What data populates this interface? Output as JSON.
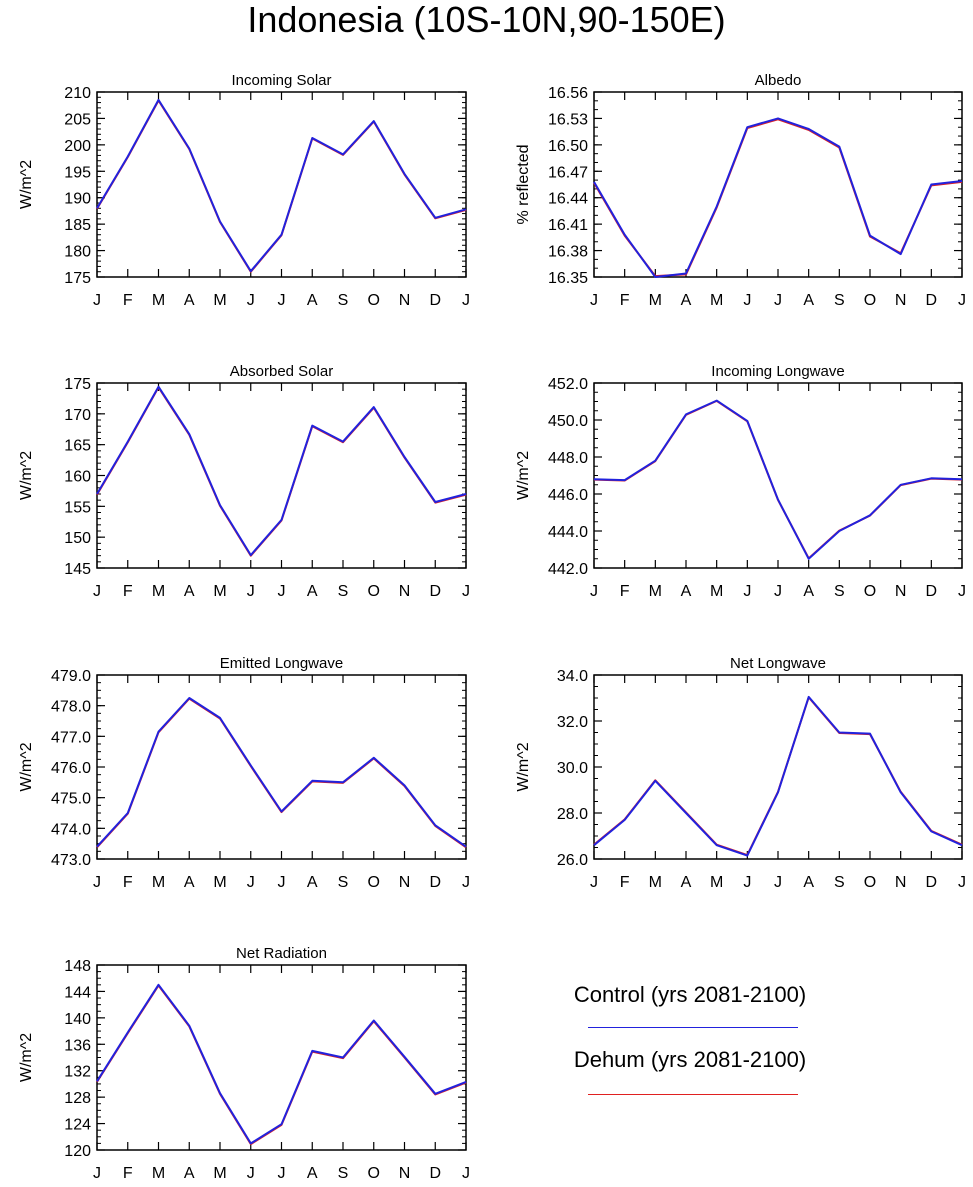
{
  "title": "Indonesia (10S-10N,90-150E)",
  "months": [
    "J",
    "F",
    "M",
    "A",
    "M",
    "J",
    "J",
    "A",
    "S",
    "O",
    "N",
    "D",
    "J"
  ],
  "colors": {
    "control": "#2222dd",
    "dehum": "#e02020",
    "axis": "#000000"
  },
  "chart_data": [
    {
      "type": "line",
      "title": "Incoming Solar",
      "ylabel": "W/m^2",
      "ylim": [
        175,
        210
      ],
      "major": 5,
      "minor": 1,
      "decimals": 0,
      "series": [
        {
          "name": "Control (yrs 2081-2100)",
          "values": [
            188.0,
            197.8,
            208.5,
            199.3,
            185.5,
            176.1,
            183.0,
            201.3,
            198.2,
            204.5,
            194.5,
            186.2,
            187.8
          ]
        },
        {
          "name": "Dehum (yrs 2081-2100)",
          "values": [
            187.9,
            197.7,
            208.4,
            199.2,
            185.4,
            176.0,
            182.9,
            201.2,
            198.1,
            204.4,
            194.4,
            186.1,
            187.7
          ]
        }
      ]
    },
    {
      "type": "line",
      "title": "Albedo",
      "ylabel": "% reflected",
      "ylim": [
        16.35,
        16.56
      ],
      "major": 0.03,
      "minor": 0.01,
      "decimals": 2,
      "series": [
        {
          "name": "Control (yrs 2081-2100)",
          "values": [
            16.458,
            16.398,
            16.35,
            16.354,
            16.43,
            16.52,
            16.53,
            16.518,
            16.498,
            16.397,
            16.376,
            16.455,
            16.459
          ]
        },
        {
          "name": "Dehum (yrs 2081-2100)",
          "values": [
            16.457,
            16.397,
            16.351,
            16.353,
            16.429,
            16.519,
            16.529,
            16.517,
            16.497,
            16.396,
            16.377,
            16.454,
            16.458
          ]
        }
      ]
    },
    {
      "type": "line",
      "title": "Absorbed Solar",
      "ylabel": "W/m^2",
      "ylim": [
        145,
        175
      ],
      "major": 5,
      "minor": 1,
      "decimals": 0,
      "series": [
        {
          "name": "Control (yrs 2081-2100)",
          "values": [
            157.0,
            165.5,
            174.4,
            166.7,
            155.2,
            147.1,
            152.8,
            168.1,
            165.5,
            171.1,
            163.0,
            155.7,
            157.0
          ]
        },
        {
          "name": "Dehum (yrs 2081-2100)",
          "values": [
            156.9,
            165.4,
            174.3,
            166.6,
            155.1,
            147.0,
            152.7,
            168.0,
            165.4,
            171.0,
            162.9,
            155.6,
            156.9
          ]
        }
      ]
    },
    {
      "type": "line",
      "title": "Incoming Longwave",
      "ylabel": "W/m^2",
      "ylim": [
        442.0,
        452.0
      ],
      "major": 2,
      "minor": 0.5,
      "decimals": 1,
      "series": [
        {
          "name": "Control (yrs 2081-2100)",
          "values": [
            446.8,
            446.75,
            447.8,
            450.3,
            451.05,
            449.95,
            445.7,
            442.5,
            444.0,
            444.85,
            446.5,
            446.85,
            446.8
          ]
        },
        {
          "name": "Dehum (yrs 2081-2100)",
          "values": [
            446.78,
            446.73,
            447.78,
            450.28,
            451.03,
            449.93,
            445.68,
            442.52,
            444.02,
            444.83,
            446.48,
            446.83,
            446.78
          ]
        }
      ]
    },
    {
      "type": "line",
      "title": "Emitted Longwave",
      "ylabel": "W/m^2",
      "ylim": [
        473.0,
        479.0
      ],
      "major": 1,
      "minor": 0.25,
      "decimals": 1,
      "series": [
        {
          "name": "Control (yrs 2081-2100)",
          "values": [
            473.4,
            474.5,
            477.15,
            478.25,
            477.6,
            476.05,
            474.55,
            475.55,
            475.5,
            476.3,
            475.4,
            474.1,
            473.4
          ]
        },
        {
          "name": "Dehum (yrs 2081-2100)",
          "values": [
            473.38,
            474.48,
            477.13,
            478.23,
            477.58,
            476.03,
            474.53,
            475.53,
            475.48,
            476.28,
            475.38,
            474.08,
            473.38
          ]
        }
      ]
    },
    {
      "type": "line",
      "title": "Net Longwave",
      "ylabel": "W/m^2",
      "ylim": [
        26.0,
        34.0
      ],
      "major": 2,
      "minor": 0.5,
      "decimals": 1,
      "series": [
        {
          "name": "Control (yrs 2081-2100)",
          "values": [
            26.6,
            27.7,
            29.4,
            28.0,
            26.6,
            26.15,
            28.9,
            33.05,
            31.5,
            31.45,
            28.9,
            27.2,
            26.6
          ]
        },
        {
          "name": "Dehum (yrs 2081-2100)",
          "values": [
            26.62,
            27.72,
            29.42,
            28.02,
            26.62,
            26.17,
            28.92,
            33.03,
            31.48,
            31.43,
            28.92,
            27.22,
            26.62
          ]
        }
      ]
    },
    {
      "type": "line",
      "title": "Net Radiation",
      "ylabel": "W/m^2",
      "ylim": [
        120,
        148
      ],
      "major": 4,
      "minor": 1,
      "decimals": 0,
      "series": [
        {
          "name": "Control (yrs 2081-2100)",
          "values": [
            130.4,
            137.8,
            145.0,
            138.8,
            128.6,
            121.0,
            123.9,
            135.0,
            134.0,
            139.6,
            134.1,
            128.5,
            130.3
          ]
        },
        {
          "name": "Dehum (yrs 2081-2100)",
          "values": [
            130.3,
            137.7,
            144.9,
            138.7,
            128.5,
            120.9,
            123.8,
            134.9,
            133.9,
            139.5,
            134.0,
            128.4,
            130.2
          ]
        }
      ]
    }
  ],
  "legend": {
    "control_label": "Control (yrs 2081-2100)",
    "dehum_label": "Dehum (yrs 2081-2100)"
  }
}
